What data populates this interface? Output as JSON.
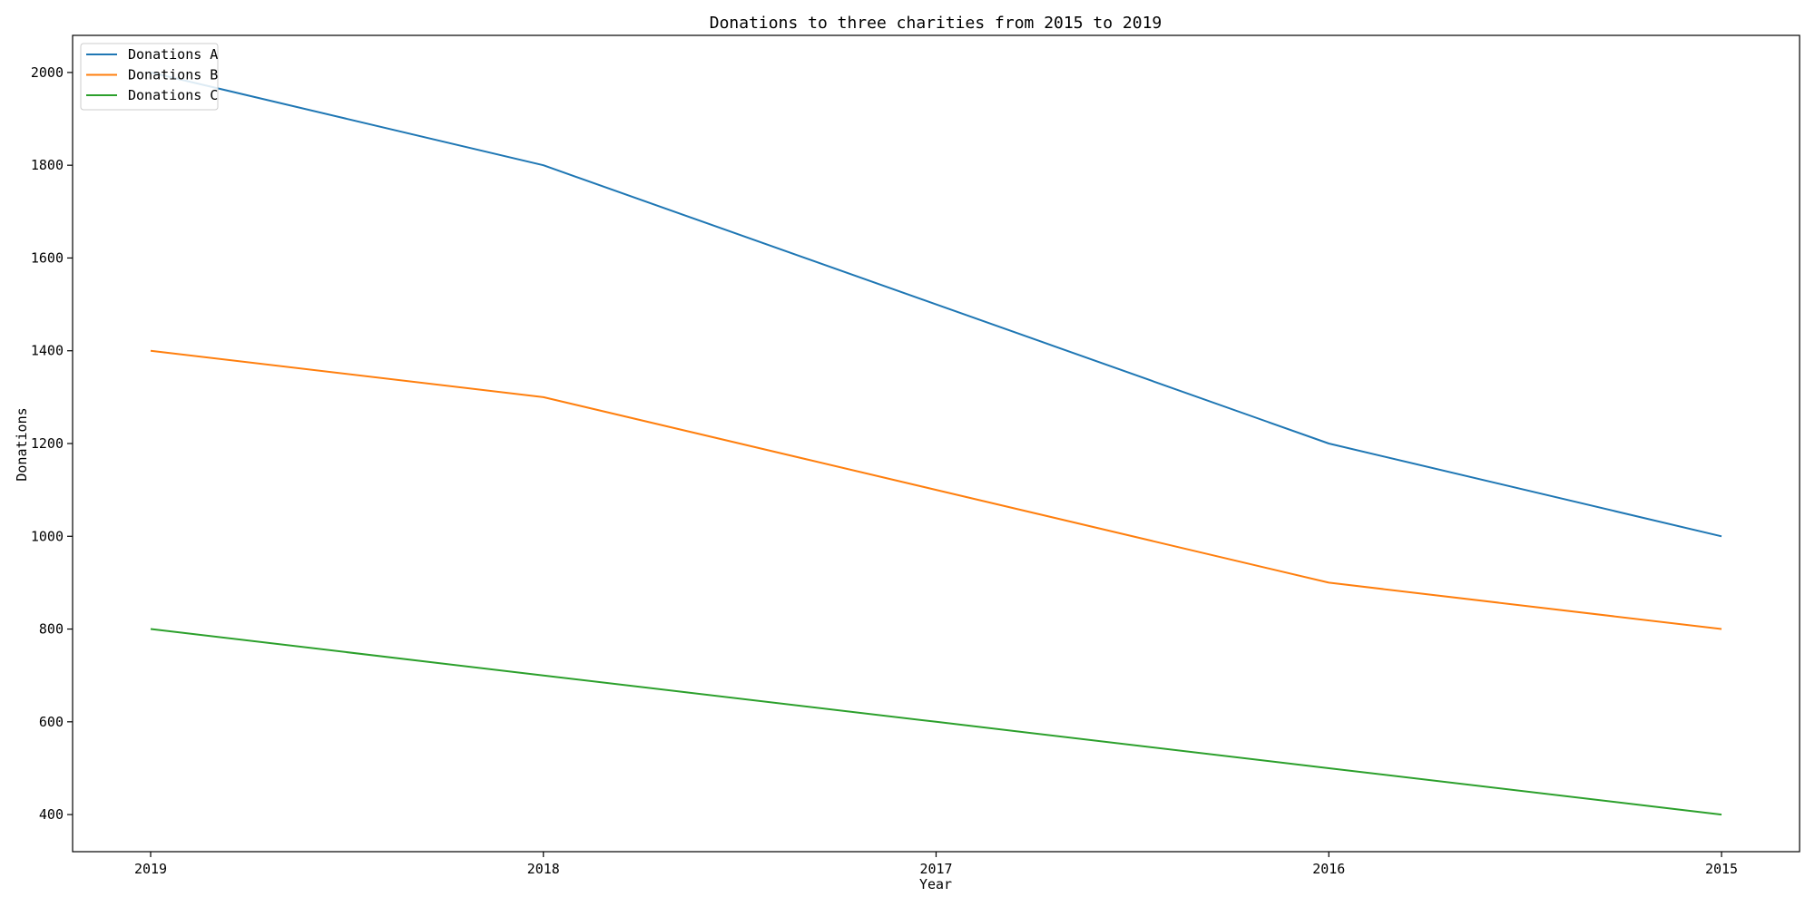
{
  "chart_data": {
    "type": "line",
    "title": "Donations to three charities from 2015 to 2019",
    "xlabel": "Year",
    "ylabel": "Donations",
    "categories": [
      "2019",
      "2018",
      "2017",
      "2016",
      "2015"
    ],
    "series": [
      {
        "name": "Donations A",
        "color": "#1f77b4",
        "values": [
          2000,
          1800,
          1500,
          1200,
          1000
        ]
      },
      {
        "name": "Donations B",
        "color": "#ff7f0e",
        "values": [
          1400,
          1300,
          1100,
          900,
          800
        ]
      },
      {
        "name": "Donations C",
        "color": "#2ca02c",
        "values": [
          800,
          700,
          600,
          500,
          400
        ]
      }
    ],
    "ylim": [
      320,
      2080
    ],
    "yticks": [
      400,
      600,
      800,
      1000,
      1200,
      1400,
      1600,
      1800,
      2000
    ],
    "grid": false,
    "legend_position": "upper left"
  }
}
